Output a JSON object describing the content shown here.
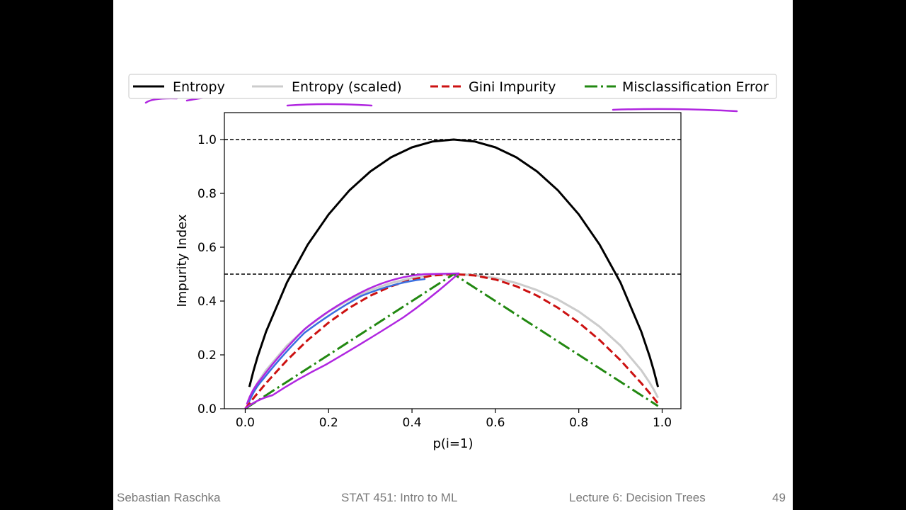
{
  "slide": {
    "footer_author": "Sebastian Raschka",
    "footer_course": "STAT 451: Intro to ML",
    "footer_lecture": "Lecture 6: Decision Trees",
    "page_number": "49"
  },
  "chart_data": {
    "type": "line",
    "title": "",
    "xlabel": "p(i=1)",
    "ylabel": "Impurity Index",
    "xlim": [
      -0.05,
      1.045
    ],
    "ylim": [
      0.0,
      1.1
    ],
    "xticks": [
      "0.0",
      "0.2",
      "0.4",
      "0.6",
      "0.8",
      "1.0"
    ],
    "yticks": [
      "0.0",
      "0.2",
      "0.4",
      "0.6",
      "0.8",
      "1.0"
    ],
    "grid": false,
    "legend_placement": "top, outside, horizontal",
    "hlines": [
      {
        "y": 1.0,
        "style": "dashed",
        "color": "#000000"
      },
      {
        "y": 0.5,
        "style": "dashed",
        "color": "#000000"
      }
    ],
    "x": [
      0.0,
      0.01,
      0.02,
      0.03,
      0.05,
      0.1,
      0.15,
      0.2,
      0.25,
      0.3,
      0.35,
      0.4,
      0.45,
      0.5,
      0.55,
      0.6,
      0.65,
      0.7,
      0.75,
      0.8,
      0.85,
      0.9,
      0.95,
      0.97,
      0.98,
      0.99
    ],
    "series": [
      {
        "name": "Entropy",
        "color": "#000000",
        "style": "solid",
        "values": [
          null,
          0.0808,
          0.1414,
          0.1944,
          0.2864,
          0.469,
          0.6098,
          0.7219,
          0.8113,
          0.8813,
          0.9341,
          0.971,
          0.9928,
          1.0,
          0.9928,
          0.971,
          0.9341,
          0.8813,
          0.8113,
          0.7219,
          0.6098,
          0.469,
          0.2864,
          0.1944,
          0.1414,
          0.0808
        ]
      },
      {
        "name": "Entropy (scaled)",
        "color": "#cccccc",
        "style": "solid",
        "values": [
          null,
          0.0404,
          0.0707,
          0.0972,
          0.1432,
          0.2345,
          0.3049,
          0.361,
          0.4056,
          0.4406,
          0.467,
          0.4855,
          0.4964,
          0.5,
          0.4964,
          0.4855,
          0.467,
          0.4406,
          0.4056,
          0.361,
          0.3049,
          0.2345,
          0.1432,
          0.0972,
          0.0707,
          0.0404
        ]
      },
      {
        "name": "Gini Impurity",
        "color": "#cc1111",
        "style": "dashed",
        "values": [
          0.0,
          0.0198,
          0.0392,
          0.0582,
          0.095,
          0.18,
          0.255,
          0.32,
          0.375,
          0.42,
          0.455,
          0.48,
          0.495,
          0.5,
          0.495,
          0.48,
          0.455,
          0.42,
          0.375,
          0.32,
          0.255,
          0.18,
          0.095,
          0.0582,
          0.0392,
          0.0198
        ]
      },
      {
        "name": "Misclassification Error",
        "color": "#228811",
        "style": "dashdot",
        "values": [
          0.0,
          0.01,
          0.02,
          0.03,
          0.05,
          0.1,
          0.15,
          0.2,
          0.25,
          0.3,
          0.35,
          0.4,
          0.45,
          0.5,
          0.45,
          0.4,
          0.35,
          0.3,
          0.25,
          0.2,
          0.15,
          0.1,
          0.05,
          0.03,
          0.02,
          0.01
        ]
      }
    ]
  }
}
